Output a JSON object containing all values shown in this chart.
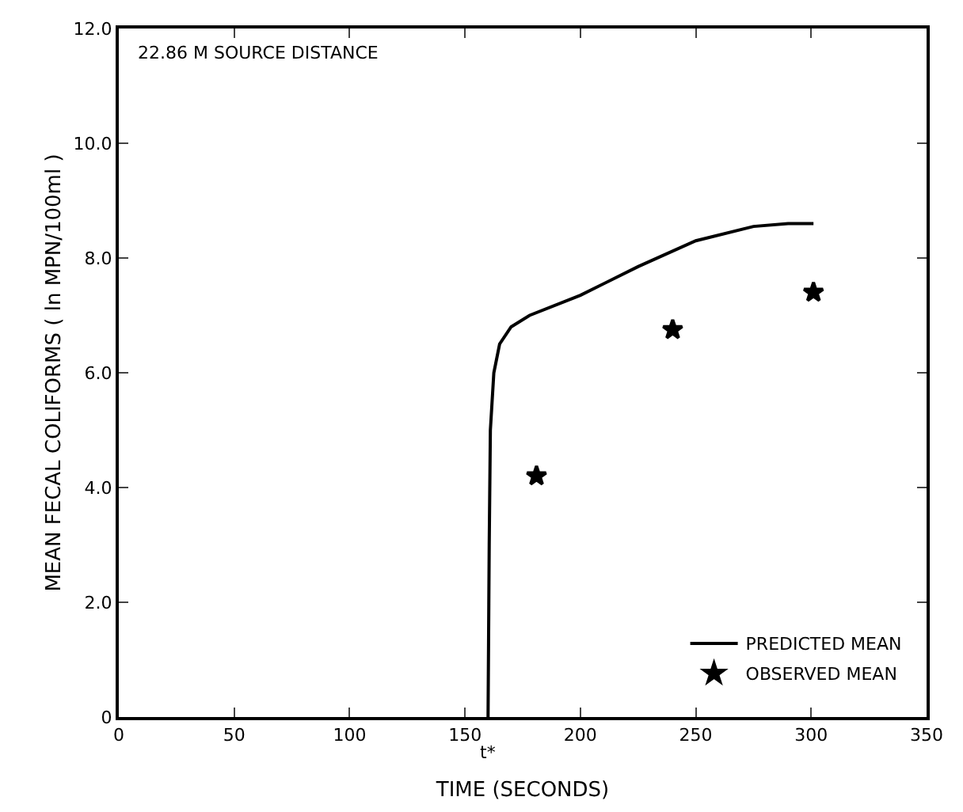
{
  "chart_data": {
    "type": "line",
    "xlabel": "TIME (SECONDS)",
    "ylabel": "MEAN FECAL COLIFORMS ( ln MPN/100ml )",
    "xlim": [
      0,
      350
    ],
    "xticks": [
      0,
      50,
      100,
      150,
      200,
      250,
      300,
      350
    ],
    "ylim": [
      0,
      12
    ],
    "yticks": [
      0,
      {
        "value": 2,
        "label": "2.0"
      },
      {
        "value": 4,
        "label": "4.0"
      },
      {
        "value": 6,
        "label": "6.0"
      },
      {
        "value": 8,
        "label": "8.0"
      },
      {
        "value": 10,
        "label": "10.0"
      },
      {
        "value": 12,
        "label": "12.0"
      }
    ],
    "grid": false,
    "legend": "bottom right",
    "annotations": [
      "22.86 M SOURCE DISTANCE",
      {
        "text": "t*",
        "x": 160,
        "y": 0
      }
    ],
    "series": [
      {
        "name": "PREDICTED MEAN",
        "color": "#000000",
        "marker": "none",
        "line_style": "solid",
        "x": [
          160,
          160.5,
          161,
          162.5,
          165,
          170,
          178,
          200,
          225,
          250,
          275,
          290,
          301
        ],
        "values": [
          0,
          3,
          5,
          6,
          6.5,
          6.8,
          7,
          7.35,
          7.85,
          8.3,
          8.55,
          8.6,
          8.6
        ]
      },
      {
        "name": "OBSERVED MEAN",
        "type": "scatter",
        "color": "#000000",
        "marker": "star",
        "x": [
          181,
          240,
          301
        ],
        "values": [
          4.2,
          6.75,
          7.4
        ]
      }
    ]
  }
}
